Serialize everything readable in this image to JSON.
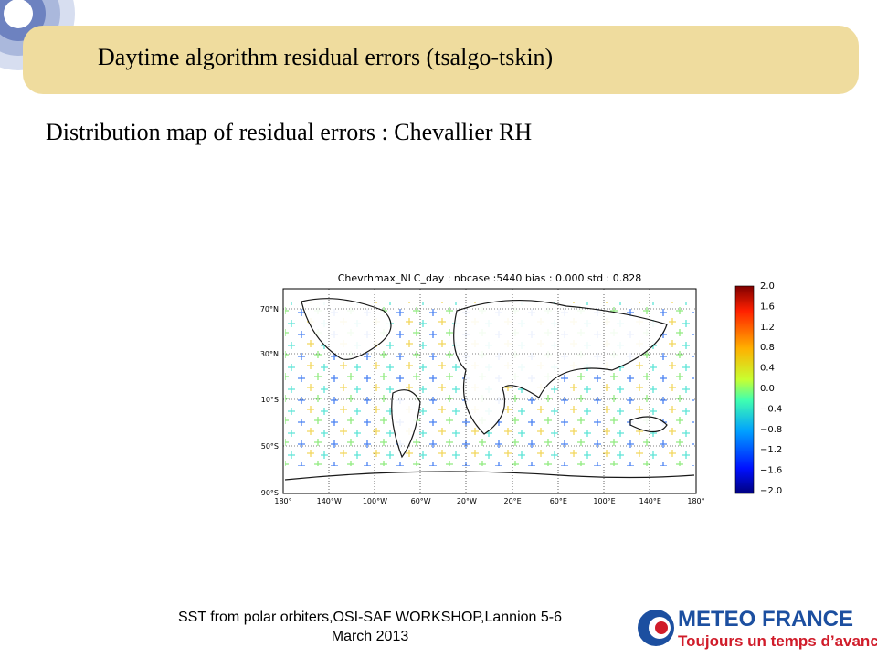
{
  "header": {
    "title": "Daytime algorithm residual errors (tsalgo-tskin)"
  },
  "subtitle": "Distribution map of residual errors : Chevallier RH",
  "figure": {
    "title": "Chevrhmax_NLC_day   : nbcase :5440 bias : 0.000 std : 0.828",
    "lat_labels": [
      "70°N",
      "30°N",
      "10°S",
      "50°S",
      "90°S"
    ],
    "lon_labels": [
      "180°",
      "140°W",
      "100°W",
      "60°W",
      "20°W",
      "20°E",
      "60°E",
      "100°E",
      "140°E",
      "180°"
    ],
    "colorbar_labels": [
      "2.0",
      "1.6",
      "1.2",
      "0.8",
      "0.4",
      "0.0",
      "−0.4",
      "−0.8",
      "−1.2",
      "−1.6",
      "−2.0"
    ]
  },
  "footer": {
    "line1": "SST from polar orbiters,OSI-SAF WORKSHOP,Lannion 5-6",
    "line2": "March 2013"
  },
  "logo": {
    "name": "METEO FRANCE",
    "slogan": "Toujours un temps d’avance"
  }
}
